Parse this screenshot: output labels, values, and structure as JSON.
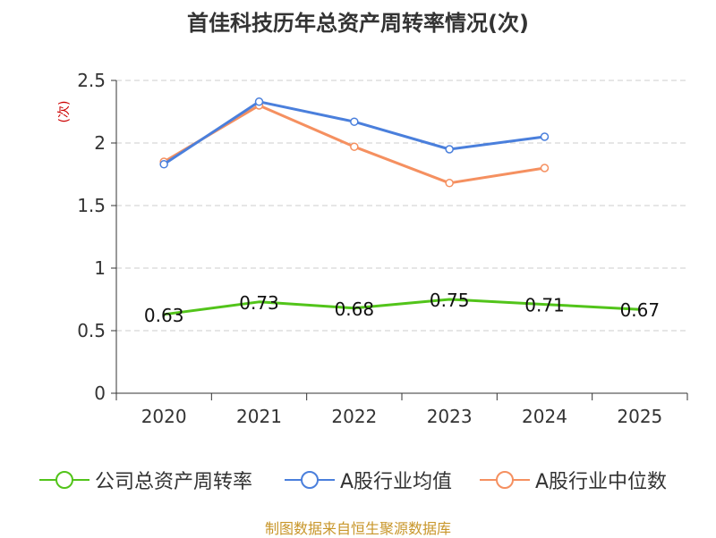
{
  "title": "首佳科技历年总资产周转率情况(次)",
  "footer": "制图数据来自恒生聚源数据库",
  "colors": {
    "company": "#52c41a",
    "avg": "#4a7fdc",
    "median": "#f59060",
    "axis": "#333333",
    "grid": "#cccccc",
    "unit": "#cc0000"
  },
  "chart_data": {
    "type": "line",
    "title": "首佳科技历年总资产周转率情况(次)",
    "xlabel": "",
    "ylabel": "(次)",
    "categories": [
      "2020",
      "2021",
      "2022",
      "2023",
      "2024",
      "2025"
    ],
    "ylim": [
      0,
      2.5
    ],
    "yticks": [
      0,
      0.5,
      1,
      1.5,
      2,
      2.5
    ],
    "ytick_labels": [
      "0",
      "0.5",
      "1",
      "1.5",
      "2",
      "2.5"
    ],
    "grid": true,
    "legend_position": "bottom",
    "series": [
      {
        "name": "公司总资产周转率",
        "color": "#52c41a",
        "values": [
          0.63,
          0.73,
          0.68,
          0.75,
          0.71,
          0.67
        ],
        "labels": [
          "0.63",
          "0.73",
          "0.68",
          "0.75",
          "0.71",
          "0.67"
        ]
      },
      {
        "name": "A股行业均值",
        "color": "#4a7fdc",
        "values": [
          1.83,
          2.33,
          2.17,
          1.95,
          2.05,
          null
        ]
      },
      {
        "name": "A股行业中位数",
        "color": "#f59060",
        "values": [
          1.85,
          2.3,
          1.97,
          1.68,
          1.8,
          null
        ]
      }
    ]
  }
}
